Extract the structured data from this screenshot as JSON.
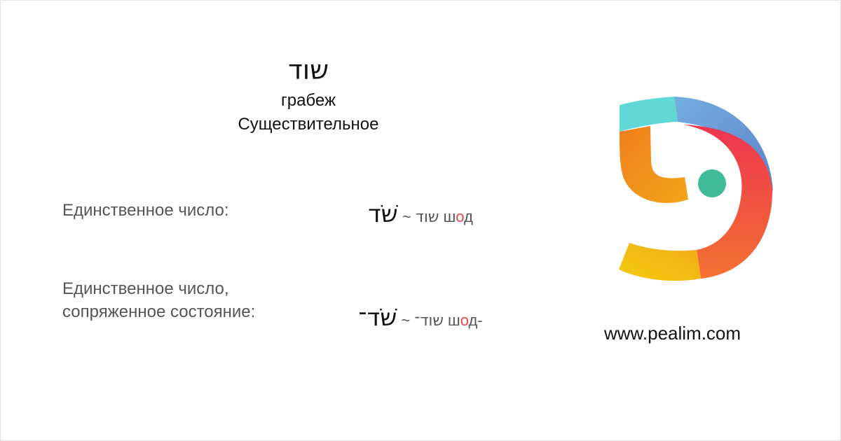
{
  "header": {
    "word": "שוד",
    "meaning": "грабеж",
    "part_of_speech": "Существительное"
  },
  "forms": [
    {
      "label": "Единственное число:",
      "plain": "שוד",
      "separator": "~",
      "pointed": "שֹׁד",
      "translit_pre": "ш",
      "translit_stress": "о",
      "translit_post": "д"
    },
    {
      "label": "Единственное число, сопряженное состояние:",
      "plain": "שוד־",
      "separator": "~",
      "pointed": "שֹׁד־",
      "translit_pre": "ш",
      "translit_stress": "о",
      "translit_post": "д-"
    }
  ],
  "site_url": "www.pealim.com",
  "colors": {
    "stress": "#e94848",
    "logo_cyan": "#5fd8d6",
    "logo_blue": "#6a9ad8",
    "logo_red": "#ee3b4b",
    "logo_orange": "#f0901a",
    "logo_yellow": "#f4c612",
    "logo_green": "#40bb98"
  }
}
